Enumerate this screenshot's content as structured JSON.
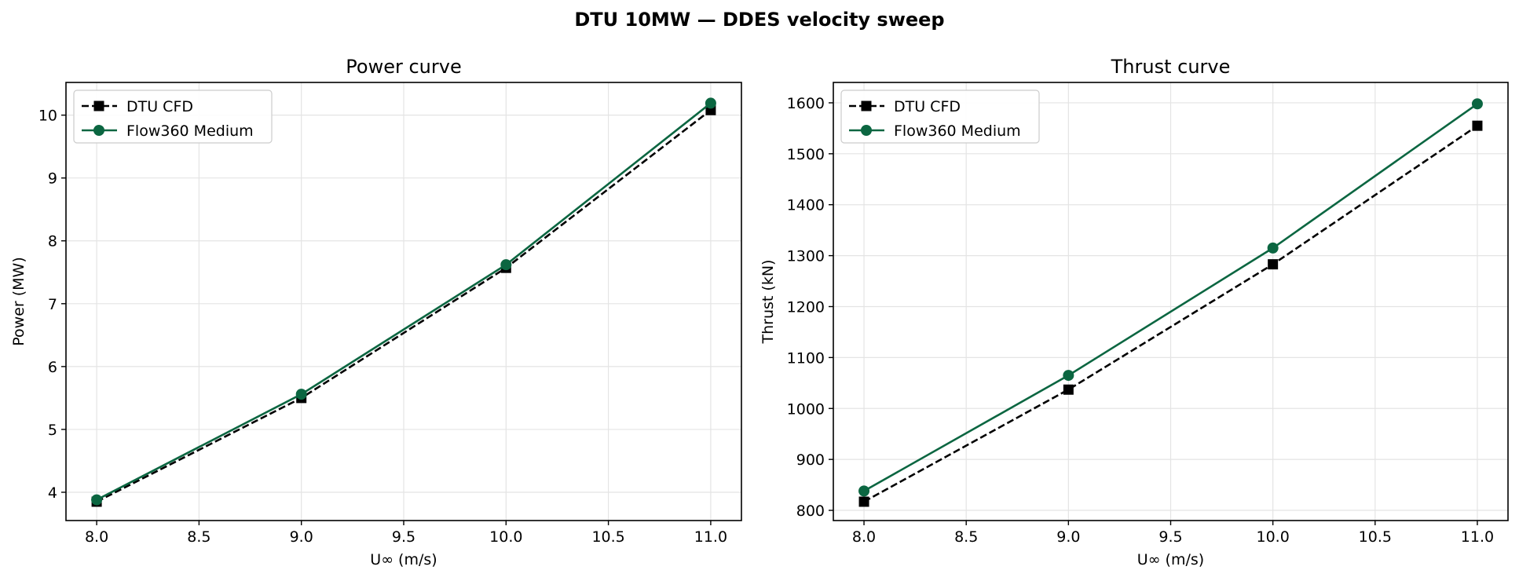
{
  "figure_title": "DTU 10MW — DDES velocity sweep",
  "chart_data": [
    {
      "type": "line",
      "title": "Power curve",
      "xlabel": "U∞ (m/s)",
      "ylabel": "Power (MW)",
      "xlim": [
        7.85,
        11.15
      ],
      "ylim": [
        3.55,
        10.52
      ],
      "xticks": [
        8.0,
        8.5,
        9.0,
        9.5,
        10.0,
        10.5,
        11.0
      ],
      "xtick_labels": [
        "8.0",
        "8.5",
        "9.0",
        "9.5",
        "10.0",
        "10.5",
        "11.0"
      ],
      "yticks": [
        4,
        5,
        6,
        7,
        8,
        9,
        10
      ],
      "ytick_labels": [
        "4",
        "5",
        "6",
        "7",
        "8",
        "9",
        "10"
      ],
      "grid": true,
      "legend_position": "upper left",
      "x": [
        8.0,
        9.0,
        10.0,
        11.0
      ],
      "series": [
        {
          "name": "DTU CFD",
          "values": [
            3.85,
            5.5,
            7.57,
            10.08
          ],
          "color": "#000000",
          "linestyle": "dashed",
          "marker": "square"
        },
        {
          "name": "Flow360 Medium",
          "values": [
            3.88,
            5.56,
            7.62,
            10.19
          ],
          "color": "#0b6641",
          "linestyle": "solid",
          "marker": "circle"
        }
      ]
    },
    {
      "type": "line",
      "title": "Thrust curve",
      "xlabel": "U∞ (m/s)",
      "ylabel": "Thrust (kN)",
      "xlim": [
        7.85,
        11.15
      ],
      "ylim": [
        780,
        1640
      ],
      "xticks": [
        8.0,
        8.5,
        9.0,
        9.5,
        10.0,
        10.5,
        11.0
      ],
      "xtick_labels": [
        "8.0",
        "8.5",
        "9.0",
        "9.5",
        "10.0",
        "10.5",
        "11.0"
      ],
      "yticks": [
        800,
        900,
        1000,
        1100,
        1200,
        1300,
        1400,
        1500,
        1600
      ],
      "ytick_labels": [
        "800",
        "900",
        "1000",
        "1100",
        "1200",
        "1300",
        "1400",
        "1500",
        "1600"
      ],
      "grid": true,
      "legend_position": "upper left",
      "x": [
        8.0,
        9.0,
        10.0,
        11.0
      ],
      "series": [
        {
          "name": "DTU CFD",
          "values": [
            817,
            1037,
            1283,
            1555
          ],
          "color": "#000000",
          "linestyle": "dashed",
          "marker": "square"
        },
        {
          "name": "Flow360 Medium",
          "values": [
            838,
            1065,
            1315,
            1598
          ],
          "color": "#0b6641",
          "linestyle": "solid",
          "marker": "circle"
        }
      ]
    }
  ]
}
